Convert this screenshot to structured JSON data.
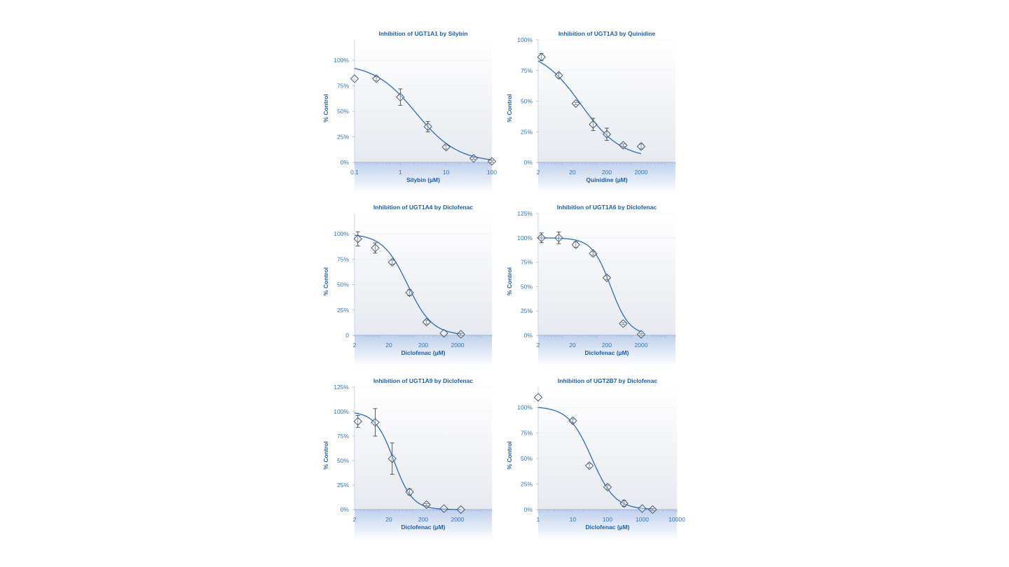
{
  "colors": {
    "title": "#1a5fa8",
    "axis_text": "#2e74c0",
    "curve": "#2b6cb8",
    "marker": "#3a4f6a",
    "errorbar": "#333333",
    "panel_top": "#ffffff",
    "panel_bottom": "#e6e9ef",
    "below_axis_top": "#bfd0ec",
    "below_axis_bottom": "#ffffff",
    "grid": "#e8ecf2"
  },
  "chart_data": [
    {
      "type": "scatter",
      "title": "Inhibition of UGT1A1 by Silybin",
      "xlabel": "Silybin (µM)",
      "ylabel": "% Control",
      "x_scale": "log",
      "xlim": [
        0.1,
        100
      ],
      "ylim": [
        0,
        120
      ],
      "xticks": [
        0.1,
        1,
        10,
        100
      ],
      "xtick_labels": [
        "0.1",
        "1",
        "10",
        "100"
      ],
      "yticks": [
        0,
        25,
        50,
        75,
        100
      ],
      "ytick_labels": [
        "0%",
        "25%",
        "50%",
        "75%",
        "100%"
      ],
      "series": [
        {
          "x": [
            0.1,
            0.3,
            1,
            4,
            10,
            40,
            100
          ],
          "y": [
            82,
            82,
            64,
            35,
            15,
            4,
            1
          ],
          "err": [
            0,
            2,
            8,
            5,
            2,
            1,
            1
          ]
        }
      ],
      "fit_curve": {
        "top": 97,
        "bottom": 0,
        "ic50": 2.2,
        "hill": 0.95
      }
    },
    {
      "type": "scatter",
      "title": "Inhibition of UGT1A3 by Quinidine",
      "xlabel": "Quinidine (µM)",
      "ylabel": "% Control",
      "x_scale": "log",
      "xlim": [
        2,
        20000
      ],
      "ylim": [
        0,
        100
      ],
      "xticks": [
        2,
        20,
        200,
        2000
      ],
      "xtick_labels": [
        "2",
        "20",
        "200",
        "2000"
      ],
      "yticks": [
        0,
        25,
        50,
        75,
        100
      ],
      "ytick_labels": [
        "0%",
        "25%",
        "50%",
        "75%",
        "100%"
      ],
      "series": [
        {
          "x": [
            2.5,
            8,
            25,
            80,
            200,
            600,
            2000
          ],
          "y": [
            86,
            71,
            48,
            31,
            23,
            14,
            13
          ],
          "err": [
            3,
            2,
            1,
            5,
            5,
            1,
            2
          ]
        }
      ],
      "fit_curve": {
        "top": 92,
        "bottom": 3,
        "ic50": 35,
        "hill": 0.75
      }
    },
    {
      "type": "scatter",
      "title": "Inhibition of UGT1A4 by Diclofenac",
      "xlabel": "Diclofenac (µM)",
      "ylabel": "% Control",
      "x_scale": "log",
      "xlim": [
        2,
        20000
      ],
      "ylim": [
        0,
        120
      ],
      "xticks": [
        2,
        20,
        200,
        2000
      ],
      "xtick_labels": [
        "2",
        "20",
        "200",
        "2000"
      ],
      "yticks": [
        0,
        25,
        50,
        75,
        100
      ],
      "ytick_labels": [
        "0",
        "25%",
        "50%",
        "75%",
        "100%"
      ],
      "series": [
        {
          "x": [
            2.5,
            8,
            25,
            80,
            250,
            800,
            2500
          ],
          "y": [
            95,
            86,
            72,
            42,
            13,
            2,
            1
          ],
          "err": [
            7,
            5,
            2,
            3,
            2,
            0,
            1
          ]
        }
      ],
      "fit_curve": {
        "top": 100,
        "bottom": 0,
        "ic50": 70,
        "hill": 1.2
      }
    },
    {
      "type": "scatter",
      "title": "Inhibition of UGT1A6 by Diclofenac",
      "xlabel": "Diclofenac (µM)",
      "ylabel": "% Control",
      "x_scale": "log",
      "xlim": [
        2,
        20000
      ],
      "ylim": [
        0,
        125
      ],
      "xticks": [
        2,
        20,
        200,
        2000
      ],
      "xtick_labels": [
        "2",
        "20",
        "200",
        "2000"
      ],
      "yticks": [
        0,
        25,
        50,
        75,
        100,
        125
      ],
      "ytick_labels": [
        "0%",
        "25%",
        "50%",
        "75%",
        "100%",
        "125%"
      ],
      "series": [
        {
          "x": [
            2.5,
            8,
            25,
            80,
            200,
            600,
            2000
          ],
          "y": [
            100,
            100,
            93,
            84,
            59,
            12,
            1
          ],
          "err": [
            5,
            6,
            3,
            2,
            2,
            1,
            1
          ]
        }
      ],
      "fit_curve": {
        "top": 100,
        "bottom": 0,
        "ic50": 260,
        "hill": 1.6
      }
    },
    {
      "type": "scatter",
      "title": "Inhibition of UGT1A9 by Diclofenac",
      "xlabel": "Diclofenac (µM)",
      "ylabel": "% Control",
      "x_scale": "log",
      "xlim": [
        2,
        20000
      ],
      "ylim": [
        0,
        125
      ],
      "xticks": [
        2,
        20,
        200,
        2000
      ],
      "xtick_labels": [
        "2",
        "20",
        "200",
        "2000"
      ],
      "yticks": [
        0,
        25,
        50,
        75,
        100,
        125
      ],
      "ytick_labels": [
        "0%",
        "25%",
        "50%",
        "75%",
        "100%",
        "125%"
      ],
      "series": [
        {
          "x": [
            2.5,
            8,
            25,
            80,
            250,
            800,
            2500
          ],
          "y": [
            90,
            89,
            52,
            18,
            5,
            1,
            0
          ],
          "err": [
            6,
            14,
            16,
            3,
            1,
            0,
            0
          ]
        }
      ],
      "fit_curve": {
        "top": 100,
        "bottom": 0,
        "ic50": 28,
        "hill": 1.6
      }
    },
    {
      "type": "scatter",
      "title": "Inhibition of UGT2B7 by Diclofenac",
      "xlabel": "Diclofenac (µM)",
      "ylabel": "% Control",
      "x_scale": "log",
      "xlim": [
        1,
        10000
      ],
      "ylim": [
        0,
        120
      ],
      "xticks": [
        1,
        10,
        100,
        1000,
        10000
      ],
      "xtick_labels": [
        "1",
        "10",
        "100",
        "1000",
        "10000"
      ],
      "yticks": [
        0,
        25,
        50,
        75,
        100
      ],
      "ytick_labels": [
        "0%",
        "25%",
        "50%",
        "75%",
        "100%"
      ],
      "series": [
        {
          "x": [
            1,
            10,
            30,
            100,
            300,
            1000,
            2000
          ],
          "y": [
            110,
            87,
            43,
            22,
            6,
            1,
            0
          ],
          "err": [
            0,
            2,
            2,
            2,
            3,
            0,
            1
          ]
        }
      ],
      "fit_curve": {
        "top": 101,
        "bottom": 0,
        "ic50": 35,
        "hill": 1.3
      }
    }
  ]
}
